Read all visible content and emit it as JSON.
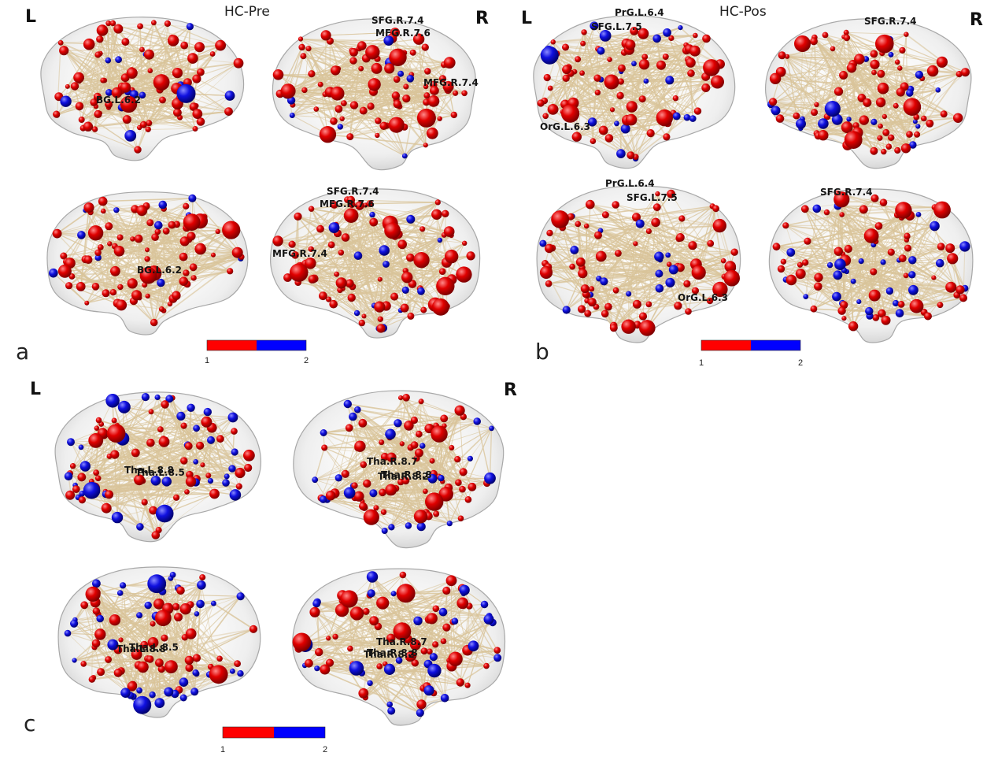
{
  "colors": {
    "module1": "#e00000",
    "module2": "#1010e0",
    "edge": "#d9c49a",
    "shell": "#c7c7c7"
  },
  "panels": [
    {
      "id": "a",
      "letter": "a",
      "title": "HC-Pre",
      "side_left": "L",
      "side_right": "R",
      "colorbar": {
        "min": "1",
        "max": "2"
      },
      "labels": [
        "BG.L.6.2",
        "SFG.R.7.4",
        "MFG.R.7.6",
        "MFG.R.7.4",
        "BG.L.6.2",
        "SFG.R.7.4",
        "MFG.R.7.6",
        "MFG.R.7.4"
      ],
      "blue_fraction": 0.12
    },
    {
      "id": "b",
      "letter": "b",
      "title": "HC-Pos",
      "side_left": "L",
      "side_right": "R",
      "colorbar": {
        "min": "1",
        "max": "2"
      },
      "labels": [
        "PrG.L.6.4",
        "SFG.L.7.5",
        "OrG.L.6.3",
        "SFG.R.7.4",
        "PrG.L.6.4",
        "SFG.L.7.5",
        "OrG.L.6.3",
        "SFG.R.7.4"
      ],
      "blue_fraction": 0.22
    },
    {
      "id": "c",
      "letter": "c",
      "title": "",
      "side_left": "L",
      "side_right": "R",
      "colorbar": {
        "min": "1",
        "max": "2"
      },
      "labels": [
        "Tha.L.8.8",
        "Tha.L.8.5",
        "Tha.R.8.7",
        "Tha.R.8.2",
        "Tha.R.8.8",
        "Tha.L.8.8",
        "Tha.L.8.5",
        "Tha.R.8.7",
        "Tha.R.8.2",
        "Tha.R.8.8"
      ],
      "blue_fraction": 0.45
    }
  ]
}
